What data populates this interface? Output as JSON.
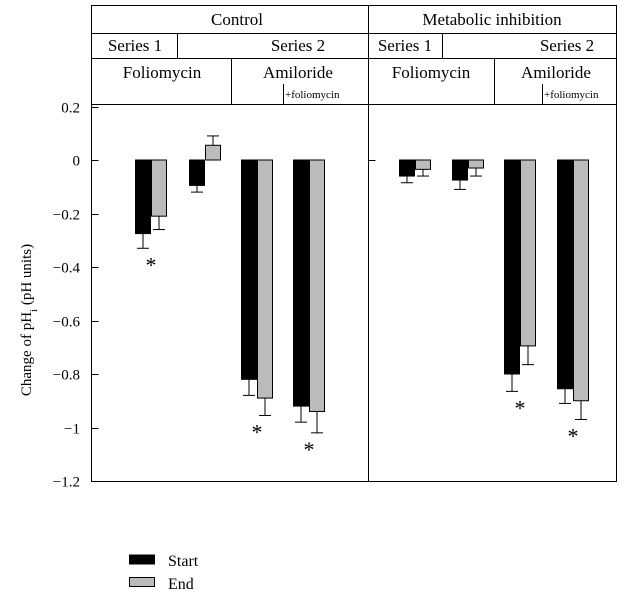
{
  "chart_data": {
    "type": "bar",
    "ylabel_main": "Change of pH",
    "ylabel_sub": "i",
    "ylabel_units": "(pH units)",
    "ylim": [
      -1.2,
      0.2
    ],
    "yticks": [
      0.2,
      0,
      -0.2,
      -0.4,
      -0.6,
      -0.8,
      -1,
      -1.2
    ],
    "ytick_labels": [
      "0.2",
      "0",
      "−0.2",
      "−0.4",
      "−0.6",
      "−0.8",
      "−1",
      "−1.2"
    ],
    "panels": [
      "Control",
      "Metabolic inhibition"
    ],
    "series_row": [
      "Series 1",
      "Series 2",
      "Series 1",
      "Series 2"
    ],
    "treatment_row": [
      "Foliomycin",
      "Amiloride",
      "Foliomycin",
      "Amiloride"
    ],
    "combo_label": "+foliomycin",
    "series": [
      {
        "name": "Start",
        "color": "#000000",
        "values": [
          -0.275,
          -0.095,
          -0.82,
          -0.92,
          -0.06,
          -0.075,
          -0.8,
          -0.855
        ],
        "errors": [
          0.055,
          0.025,
          0.06,
          0.06,
          0.025,
          0.035,
          0.065,
          0.055
        ]
      },
      {
        "name": "End",
        "color": "#bbbbbb",
        "values": [
          -0.21,
          0.055,
          -0.89,
          -0.94,
          -0.035,
          -0.03,
          -0.695,
          -0.9
        ],
        "errors": [
          0.05,
          0.035,
          0.065,
          0.08,
          0.025,
          0.03,
          0.07,
          0.07
        ]
      }
    ],
    "significance_marker": "*",
    "significant_groups": [
      0,
      2,
      3,
      6,
      7
    ],
    "grid": false,
    "legend_position": "bottom-left"
  }
}
